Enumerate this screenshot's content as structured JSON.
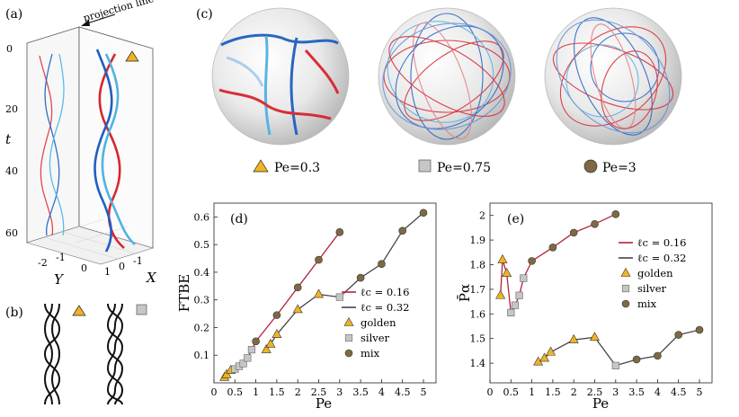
{
  "panels": {
    "a": {
      "label": "(a)",
      "projection_line_label": "projection line",
      "t_label": "t",
      "t_ticks": [
        "0",
        "20",
        "40",
        "60"
      ],
      "y_label": "Y",
      "y_ticks": [
        "-2",
        "-1",
        "0"
      ],
      "x_label": "X",
      "x_ticks": [
        "1",
        "0",
        "-1"
      ],
      "marker": "triangle-icon"
    },
    "b": {
      "label": "(b)"
    },
    "c": {
      "label": "(c)",
      "legend": [
        {
          "label": "Pe=0.3",
          "marker": "triangle",
          "color": "#f0b323"
        },
        {
          "label": "Pe=0.75",
          "marker": "square",
          "color": "#c6c6c6"
        },
        {
          "label": "Pe=3",
          "marker": "circle",
          "color": "#7d6a45"
        }
      ]
    }
  },
  "colors": {
    "red": "#d6262f",
    "blue": "#1f5fbf",
    "lightblue": "#4fb2e3",
    "dark_red": "#b3233a",
    "dark_gray": "#444444",
    "golden": "#f0b323",
    "silver": "#c6c6c6",
    "mix": "#7d6a45"
  },
  "chart_data": [
    {
      "id": "d",
      "label": "(d)",
      "type": "line",
      "title": "",
      "xlabel": "Pe",
      "ylabel": "FTBE",
      "xlim": [
        0,
        5.3
      ],
      "ylim": [
        0,
        0.65
      ],
      "xticks": [
        "0",
        "0.5",
        "1",
        "1.5",
        "2",
        "2.5",
        "3",
        "3.5",
        "4",
        "4.5",
        "5"
      ],
      "yticks": [
        "0.1",
        "0.2",
        "0.3",
        "0.4",
        "0.5",
        "0.6"
      ],
      "series": [
        {
          "name": "ℓ_c = 0.16",
          "color": "#b3233a",
          "points": [
            {
              "x": 0.25,
              "y": 0.02,
              "m": "golden"
            },
            {
              "x": 0.3,
              "y": 0.03,
              "m": "golden"
            },
            {
              "x": 0.4,
              "y": 0.045,
              "m": "golden"
            },
            {
              "x": 0.5,
              "y": 0.05,
              "m": "silver"
            },
            {
              "x": 0.6,
              "y": 0.06,
              "m": "silver"
            },
            {
              "x": 0.7,
              "y": 0.07,
              "m": "silver"
            },
            {
              "x": 0.8,
              "y": 0.09,
              "m": "silver"
            },
            {
              "x": 0.9,
              "y": 0.12,
              "m": "silver"
            },
            {
              "x": 1.0,
              "y": 0.15,
              "m": "mix"
            },
            {
              "x": 1.5,
              "y": 0.245,
              "m": "mix"
            },
            {
              "x": 2.0,
              "y": 0.345,
              "m": "mix"
            },
            {
              "x": 2.5,
              "y": 0.445,
              "m": "mix"
            },
            {
              "x": 3.0,
              "y": 0.545,
              "m": "mix"
            }
          ]
        },
        {
          "name": "ℓ_c = 0.32",
          "color": "#444444",
          "points": [
            {
              "x": 1.25,
              "y": 0.12,
              "m": "golden"
            },
            {
              "x": 1.35,
              "y": 0.14,
              "m": "golden"
            },
            {
              "x": 1.5,
              "y": 0.175,
              "m": "golden"
            },
            {
              "x": 2.0,
              "y": 0.265,
              "m": "golden"
            },
            {
              "x": 2.5,
              "y": 0.32,
              "m": "golden"
            },
            {
              "x": 3.0,
              "y": 0.31,
              "m": "silver"
            },
            {
              "x": 3.5,
              "y": 0.38,
              "m": "mix"
            },
            {
              "x": 4.0,
              "y": 0.43,
              "m": "mix"
            },
            {
              "x": 4.5,
              "y": 0.55,
              "m": "mix"
            },
            {
              "x": 5.0,
              "y": 0.615,
              "m": "mix"
            }
          ]
        }
      ],
      "legend": [
        {
          "label": "ℓc = 0.16",
          "kind": "line",
          "color": "#b3233a"
        },
        {
          "label": "ℓc = 0.32",
          "kind": "line",
          "color": "#444444"
        },
        {
          "label": "golden",
          "kind": "golden"
        },
        {
          "label": "silver",
          "kind": "silver"
        },
        {
          "label": "mix",
          "kind": "mix"
        }
      ]
    },
    {
      "id": "e",
      "label": "(e)",
      "type": "line",
      "title": "",
      "xlabel": "Pe",
      "ylabel": "P̄α",
      "xlim": [
        0,
        5.3
      ],
      "ylim": [
        1.32,
        2.05
      ],
      "xticks": [
        "0",
        "0.5",
        "1",
        "1.5",
        "2",
        "2.5",
        "3",
        "3.5",
        "4",
        "4.5",
        "5"
      ],
      "yticks": [
        "1.4",
        "1.5",
        "1.6",
        "1.7",
        "1.8",
        "1.9",
        "2"
      ],
      "series": [
        {
          "name": "ℓ_c = 0.16",
          "color": "#b3233a",
          "points": [
            {
              "x": 0.25,
              "y": 1.675,
              "m": "golden"
            },
            {
              "x": 0.3,
              "y": 1.82,
              "m": "golden"
            },
            {
              "x": 0.4,
              "y": 1.765,
              "m": "golden"
            },
            {
              "x": 0.5,
              "y": 1.605,
              "m": "silver"
            },
            {
              "x": 0.6,
              "y": 1.635,
              "m": "silver"
            },
            {
              "x": 0.7,
              "y": 1.675,
              "m": "silver"
            },
            {
              "x": 0.8,
              "y": 1.745,
              "m": "silver"
            },
            {
              "x": 1.0,
              "y": 1.815,
              "m": "mix"
            },
            {
              "x": 1.5,
              "y": 1.87,
              "m": "mix"
            },
            {
              "x": 2.0,
              "y": 1.93,
              "m": "mix"
            },
            {
              "x": 2.5,
              "y": 1.965,
              "m": "mix"
            },
            {
              "x": 3.0,
              "y": 2.005,
              "m": "mix"
            }
          ]
        },
        {
          "name": "ℓ_c = 0.32",
          "color": "#444444",
          "points": [
            {
              "x": 1.15,
              "y": 1.405,
              "m": "golden"
            },
            {
              "x": 1.3,
              "y": 1.42,
              "m": "golden"
            },
            {
              "x": 1.45,
              "y": 1.445,
              "m": "golden"
            },
            {
              "x": 2.0,
              "y": 1.495,
              "m": "golden"
            },
            {
              "x": 2.5,
              "y": 1.505,
              "m": "golden"
            },
            {
              "x": 3.0,
              "y": 1.39,
              "m": "silver"
            },
            {
              "x": 3.5,
              "y": 1.415,
              "m": "mix"
            },
            {
              "x": 4.0,
              "y": 1.43,
              "m": "mix"
            },
            {
              "x": 4.5,
              "y": 1.515,
              "m": "mix"
            },
            {
              "x": 5.0,
              "y": 1.535,
              "m": "mix"
            }
          ]
        }
      ],
      "legend": [
        {
          "label": "ℓc = 0.16",
          "kind": "line",
          "color": "#b3233a"
        },
        {
          "label": "ℓc = 0.32",
          "kind": "line",
          "color": "#444444"
        },
        {
          "label": "golden",
          "kind": "golden"
        },
        {
          "label": "silver",
          "kind": "silver"
        },
        {
          "label": "mix",
          "kind": "mix"
        }
      ]
    }
  ]
}
